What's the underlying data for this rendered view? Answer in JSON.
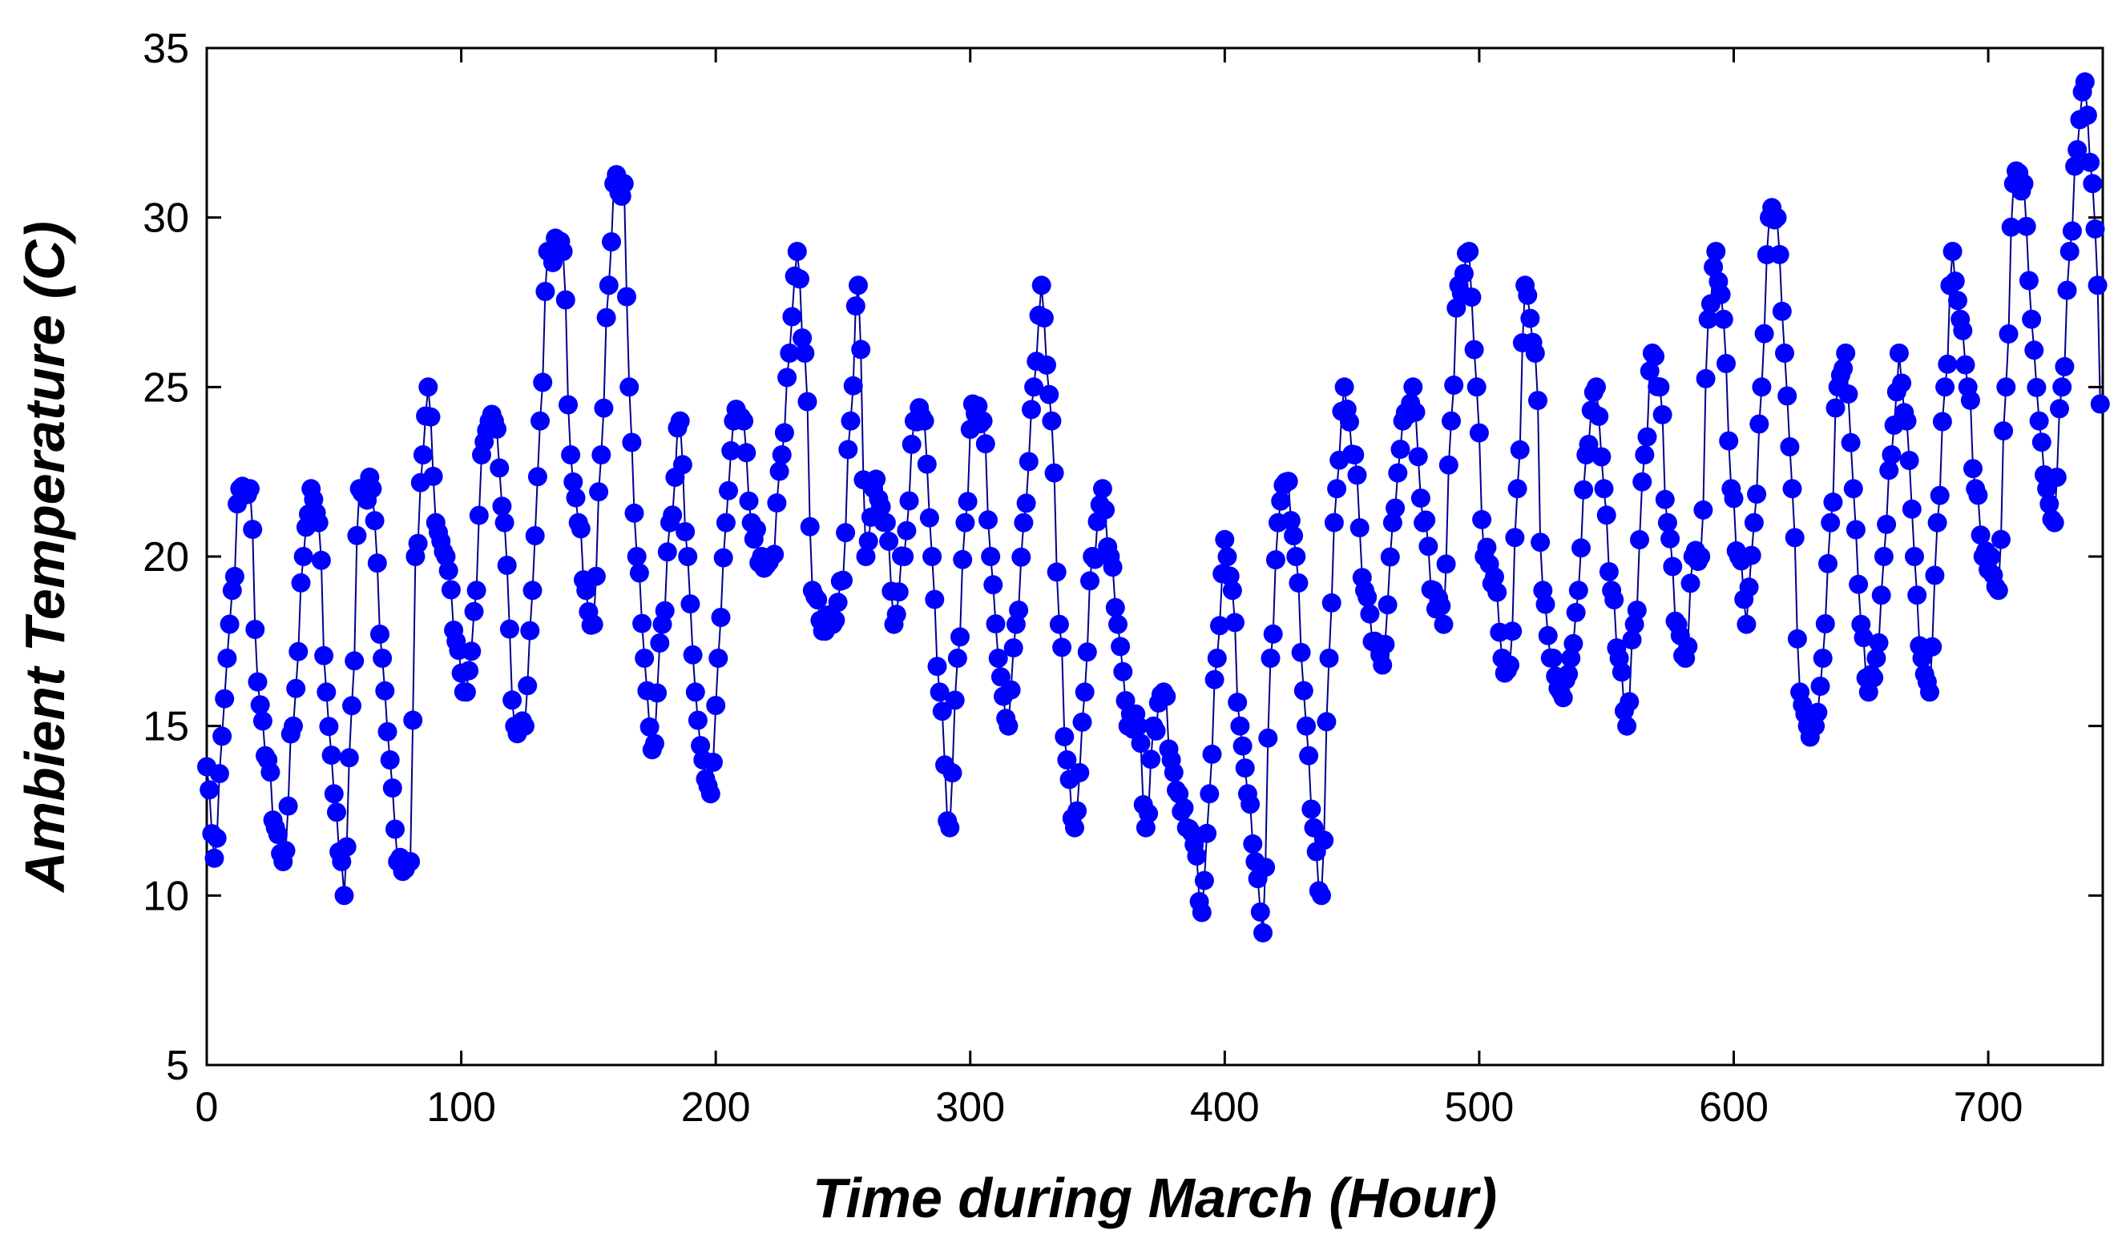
{
  "chart_data": {
    "type": "line",
    "xlabel": "Time during March (Hour)",
    "ylabel": "Ambient Temperature (C)",
    "xlim": [
      0,
      745
    ],
    "ylim": [
      5,
      35
    ],
    "xticks": [
      0,
      100,
      200,
      300,
      400,
      500,
      600,
      700
    ],
    "yticks": [
      5,
      10,
      15,
      20,
      25,
      30,
      35
    ],
    "grid": false,
    "marker": "circle",
    "series_color": "#0000ff",
    "line_color": "#00008b",
    "anchors": [
      [
        0,
        13.8
      ],
      [
        3,
        11.1
      ],
      [
        6,
        14.7
      ],
      [
        8,
        17
      ],
      [
        10,
        19
      ],
      [
        13,
        22
      ],
      [
        17,
        22
      ],
      [
        20,
        16.3
      ],
      [
        24,
        14
      ],
      [
        27,
        12
      ],
      [
        30,
        11
      ],
      [
        34,
        15
      ],
      [
        38,
        20
      ],
      [
        41,
        22
      ],
      [
        44,
        21
      ],
      [
        47,
        16
      ],
      [
        50,
        13
      ],
      [
        53,
        11
      ],
      [
        54,
        10
      ],
      [
        57,
        15.6
      ],
      [
        60,
        22
      ],
      [
        65,
        22
      ],
      [
        69,
        17
      ],
      [
        72,
        14
      ],
      [
        75,
        11
      ],
      [
        80,
        11
      ],
      [
        82,
        20
      ],
      [
        85,
        23
      ],
      [
        87,
        25
      ],
      [
        90,
        21
      ],
      [
        94,
        20
      ],
      [
        98,
        17.5
      ],
      [
        102,
        16
      ],
      [
        106,
        19
      ],
      [
        108,
        23
      ],
      [
        113,
        24
      ],
      [
        117,
        21
      ],
      [
        121,
        15
      ],
      [
        125,
        15
      ],
      [
        128,
        19
      ],
      [
        131,
        24
      ],
      [
        134,
        29
      ],
      [
        140,
        29
      ],
      [
        143,
        23
      ],
      [
        146,
        21
      ],
      [
        149,
        19
      ],
      [
        152,
        18
      ],
      [
        155,
        23
      ],
      [
        158,
        28
      ],
      [
        160,
        31
      ],
      [
        164,
        31
      ],
      [
        166,
        25
      ],
      [
        169,
        20
      ],
      [
        172,
        17
      ],
      [
        175,
        14.3
      ],
      [
        179,
        18
      ],
      [
        182,
        21
      ],
      [
        186,
        24
      ],
      [
        189,
        20
      ],
      [
        192,
        16
      ],
      [
        195,
        14
      ],
      [
        198,
        13
      ],
      [
        201,
        17
      ],
      [
        204,
        21
      ],
      [
        207,
        24
      ],
      [
        211,
        24
      ],
      [
        214,
        21
      ],
      [
        218,
        20
      ],
      [
        222,
        20
      ],
      [
        226,
        23
      ],
      [
        229,
        26
      ],
      [
        232,
        29
      ],
      [
        235,
        26
      ],
      [
        238,
        19
      ],
      [
        242,
        17.8
      ],
      [
        246,
        18
      ],
      [
        250,
        19.3
      ],
      [
        253,
        24
      ],
      [
        256,
        28
      ],
      [
        259,
        20
      ],
      [
        262,
        22
      ],
      [
        267,
        21
      ],
      [
        270,
        18
      ],
      [
        274,
        20
      ],
      [
        278,
        24
      ],
      [
        282,
        24
      ],
      [
        285,
        20
      ],
      [
        288,
        16
      ],
      [
        292,
        12
      ],
      [
        295,
        17
      ],
      [
        298,
        21
      ],
      [
        301,
        24.5
      ],
      [
        305,
        24
      ],
      [
        308,
        20
      ],
      [
        311,
        17
      ],
      [
        315,
        15
      ],
      [
        318,
        18
      ],
      [
        321,
        21
      ],
      [
        325,
        25
      ],
      [
        328,
        28
      ],
      [
        332,
        24
      ],
      [
        335,
        18
      ],
      [
        338,
        14
      ],
      [
        341,
        12
      ],
      [
        345,
        16
      ],
      [
        348,
        20
      ],
      [
        352,
        22
      ],
      [
        355,
        20
      ],
      [
        358,
        18
      ],
      [
        362,
        15
      ],
      [
        366,
        15
      ],
      [
        369,
        12
      ],
      [
        372,
        15
      ],
      [
        376,
        16
      ],
      [
        379,
        14
      ],
      [
        382,
        13
      ],
      [
        385,
        12
      ],
      [
        388,
        11.5
      ],
      [
        391,
        9.5
      ],
      [
        394,
        13
      ],
      [
        397,
        17
      ],
      [
        400,
        20.5
      ],
      [
        403,
        19
      ],
      [
        406,
        15
      ],
      [
        409,
        13
      ],
      [
        412,
        11
      ],
      [
        415,
        8.9
      ],
      [
        418,
        17
      ],
      [
        421,
        21
      ],
      [
        424,
        22.2
      ],
      [
        428,
        20
      ],
      [
        432,
        15
      ],
      [
        435,
        12
      ],
      [
        438,
        10
      ],
      [
        441,
        17
      ],
      [
        444,
        22
      ],
      [
        447,
        25
      ],
      [
        451,
        23
      ],
      [
        455,
        19
      ],
      [
        459,
        17.5
      ],
      [
        462,
        16.8
      ],
      [
        466,
        21
      ],
      [
        470,
        24
      ],
      [
        474,
        25
      ],
      [
        478,
        21
      ],
      [
        482,
        19
      ],
      [
        486,
        18
      ],
      [
        489,
        24
      ],
      [
        492,
        28
      ],
      [
        496,
        29
      ],
      [
        499,
        25
      ],
      [
        502,
        20
      ],
      [
        506,
        19.4
      ],
      [
        509,
        17
      ],
      [
        512,
        16.8
      ],
      [
        515,
        22
      ],
      [
        518,
        28
      ],
      [
        522,
        26
      ],
      [
        525,
        19
      ],
      [
        529,
        17
      ],
      [
        532,
        16
      ],
      [
        536,
        17
      ],
      [
        539,
        19
      ],
      [
        542,
        23
      ],
      [
        546,
        25
      ],
      [
        549,
        22
      ],
      [
        552,
        19
      ],
      [
        555,
        17
      ],
      [
        558,
        15
      ],
      [
        561,
        18
      ],
      [
        565,
        23
      ],
      [
        568,
        26
      ],
      [
        571,
        25
      ],
      [
        574,
        21
      ],
      [
        578,
        18
      ],
      [
        581,
        17
      ],
      [
        584,
        20
      ],
      [
        587,
        20
      ],
      [
        590,
        27
      ],
      [
        593,
        29
      ],
      [
        596,
        27
      ],
      [
        599,
        22
      ],
      [
        602,
        20
      ],
      [
        605,
        18
      ],
      [
        608,
        21
      ],
      [
        611,
        25
      ],
      [
        614,
        30
      ],
      [
        617,
        30
      ],
      [
        620,
        26
      ],
      [
        623,
        22
      ],
      [
        626,
        16
      ],
      [
        629,
        15
      ],
      [
        632,
        15
      ],
      [
        635,
        17
      ],
      [
        638,
        21
      ],
      [
        641,
        25
      ],
      [
        644,
        26
      ],
      [
        647,
        22
      ],
      [
        650,
        18
      ],
      [
        653,
        16
      ],
      [
        656,
        17
      ],
      [
        659,
        20
      ],
      [
        662,
        23
      ],
      [
        665,
        26
      ],
      [
        668,
        24
      ],
      [
        671,
        20
      ],
      [
        674,
        17
      ],
      [
        677,
        16
      ],
      [
        680,
        21
      ],
      [
        683,
        25
      ],
      [
        686,
        29
      ],
      [
        689,
        27
      ],
      [
        692,
        25
      ],
      [
        695,
        22
      ],
      [
        698,
        20
      ],
      [
        701,
        20
      ],
      [
        704,
        19
      ],
      [
        707,
        25
      ],
      [
        710,
        31
      ],
      [
        714,
        31
      ],
      [
        717,
        27
      ],
      [
        720,
        24
      ],
      [
        723,
        22
      ],
      [
        726,
        21
      ],
      [
        729,
        25
      ],
      [
        732,
        29
      ],
      [
        735,
        32
      ],
      [
        738,
        34
      ],
      [
        741,
        31
      ],
      [
        743,
        28
      ],
      [
        744,
        24.5
      ]
    ]
  }
}
